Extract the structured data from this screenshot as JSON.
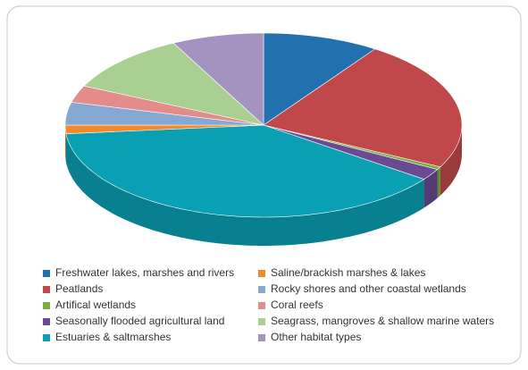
{
  "chart_data": {
    "type": "pie3d",
    "series": [
      {
        "name": "Freshwater lakes, marshes and rivers",
        "color": "#2271ae",
        "value": 9.5
      },
      {
        "name": "Peatlands",
        "color": "#c0484a",
        "value": 23
      },
      {
        "name": "Artifical wetlands",
        "color": "#7bad3f",
        "value": 0.5
      },
      {
        "name": "Seasonally flooded agricultural land",
        "color": "#6a4a92",
        "value": 2
      },
      {
        "name": "Estuaries & saltmarshes",
        "color": "#0aa0b3",
        "value": 38.5
      },
      {
        "name": "Saline/brackish marshes & lakes",
        "color": "#f08a2e",
        "value": 1.5
      },
      {
        "name": "Rocky shores and other coastal wetlands",
        "color": "#86a9d3",
        "value": 4
      },
      {
        "name": "Coral reefs",
        "color": "#e48c8c",
        "value": 3
      },
      {
        "name": "Seagrass, mangroves & shallow marine waters",
        "color": "#a9cf91",
        "value": 10.5
      },
      {
        "name": "Other habitat types",
        "color": "#a493c0",
        "value": 7.5
      }
    ]
  }
}
